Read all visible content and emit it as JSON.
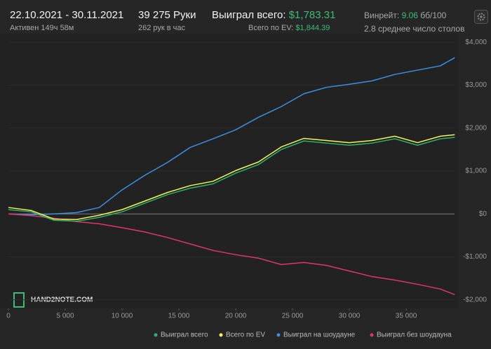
{
  "header": {
    "date_range": "22.10.2021 - 30.11.2021",
    "active_time": "Активен 149ч 58м",
    "hands": "39 275 Руки",
    "hands_per_hour": "262 рук в час",
    "won_total_label": "Выиграл всего:",
    "won_total_value": "$1,783.31",
    "ev_total_label": "Всего по EV:",
    "ev_total_value": "$1,844.39",
    "winrate_label": "Винрейт:",
    "winrate_value": "9.06",
    "winrate_unit": " бб/100",
    "avg_tables": "2.8 среднее число столов"
  },
  "logo": "HAND2NOTE.COM",
  "chart_data": {
    "type": "line",
    "x": [
      0,
      2000,
      4000,
      6000,
      8000,
      10000,
      12000,
      14000,
      16000,
      18000,
      20000,
      22000,
      24000,
      26000,
      28000,
      30000,
      32000,
      34000,
      36000,
      38000,
      39275
    ],
    "series": [
      {
        "name": "Выиграл всего",
        "color": "#2db36b",
        "values": [
          100,
          50,
          -150,
          -170,
          -80,
          50,
          250,
          450,
          600,
          700,
          950,
          1150,
          1500,
          1700,
          1650,
          1600,
          1650,
          1750,
          1600,
          1750,
          1783
        ]
      },
      {
        "name": "Всего по EV",
        "color": "#f2f25a",
        "values": [
          150,
          80,
          -120,
          -130,
          -30,
          100,
          300,
          500,
          660,
          760,
          1010,
          1210,
          1560,
          1760,
          1710,
          1660,
          1710,
          1810,
          1660,
          1810,
          1844
        ]
      },
      {
        "name": "Выиграл на шоудауне",
        "color": "#3d8fe0",
        "values": [
          0,
          -20,
          0,
          30,
          150,
          560,
          900,
          1200,
          1550,
          1750,
          1960,
          2250,
          2500,
          2800,
          2950,
          3020,
          3100,
          3250,
          3350,
          3450,
          3640
        ]
      },
      {
        "name": "Выиграл без шоудауна",
        "color": "#e0356f",
        "values": [
          0,
          -40,
          -100,
          -180,
          -230,
          -320,
          -420,
          -550,
          -700,
          -850,
          -950,
          -1030,
          -1180,
          -1130,
          -1200,
          -1330,
          -1460,
          -1540,
          -1640,
          -1750,
          -1880
        ]
      }
    ],
    "xlim": [
      0,
      39500
    ],
    "xticks": [
      0,
      {
        "value": 5000,
        "label": "5 000"
      },
      {
        "value": 10000,
        "label": "10 000"
      },
      {
        "value": 15000,
        "label": "15 000"
      },
      {
        "value": 20000,
        "label": "20 000"
      },
      {
        "value": 25000,
        "label": "25 000"
      },
      {
        "value": 30000,
        "label": "30 000"
      },
      {
        "value": 35000,
        "label": "35 000"
      }
    ],
    "ylim": [
      -2200,
      4200
    ],
    "yticks": [
      {
        "value": -2000,
        "label": "-$2,000"
      },
      {
        "value": -1000,
        "label": "-$1,000"
      },
      {
        "value": 0,
        "label": "$0"
      },
      {
        "value": 1000,
        "label": "$1,000"
      },
      {
        "value": 2000,
        "label": "$2,000"
      },
      {
        "value": 3000,
        "label": "$3,000"
      },
      {
        "value": 4000,
        "label": "$4,000"
      }
    ],
    "grid": true
  }
}
